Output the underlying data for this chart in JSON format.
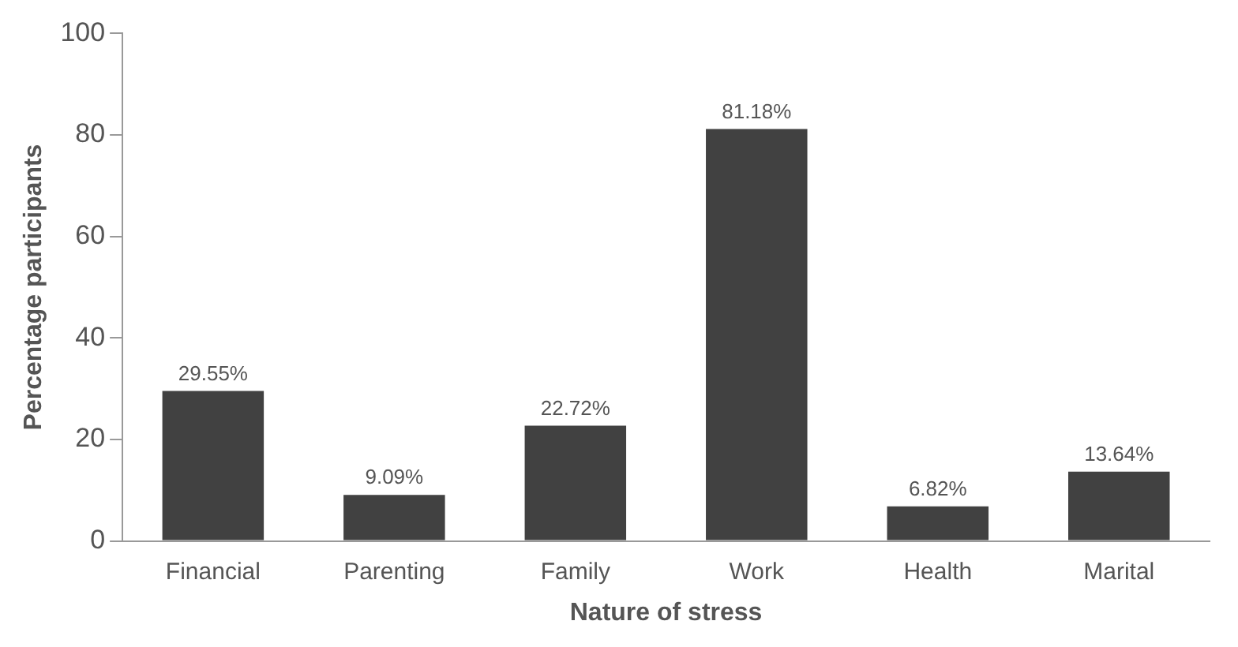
{
  "chart_data": {
    "type": "bar",
    "xlabel": "Nature of stress",
    "ylabel": "Percentage participants",
    "categories": [
      "Financial",
      "Parenting",
      "Family",
      "Work",
      "Health",
      "Marital"
    ],
    "values": [
      29.55,
      9.09,
      22.72,
      81.18,
      6.82,
      13.64
    ],
    "value_labels": [
      "29.55%",
      "9.09%",
      "22.72%",
      "81.18%",
      "6.82%",
      "13.64%"
    ],
    "color": "#414141",
    "ylim": [
      0,
      100
    ],
    "yticks": [
      0,
      20,
      40,
      60,
      80,
      100
    ],
    "grid": false,
    "legend": false
  }
}
